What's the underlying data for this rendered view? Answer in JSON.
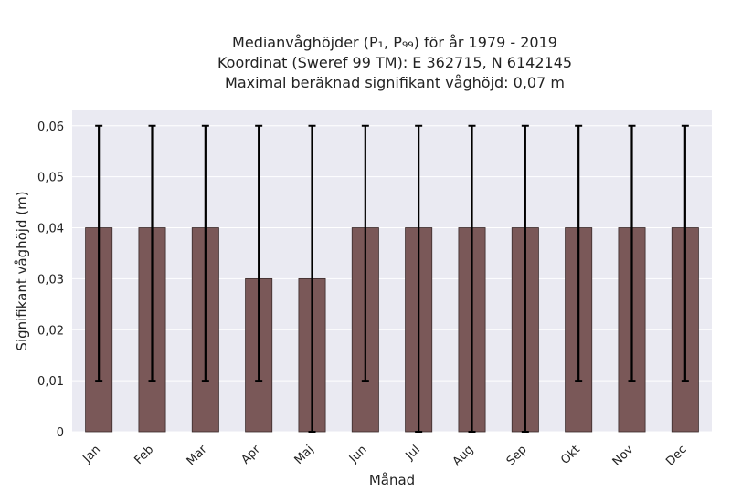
{
  "chart_data": {
    "type": "bar",
    "title_lines": [
      "Medianvåghöjder (P₁, P₉₉) för år 1979 - 2019",
      "Koordinat (Sweref 99 TM): E 362715, N 6142145",
      "Maximal beräknad signifikant våghöjd: 0,07 m"
    ],
    "xlabel": "Månad",
    "ylabel": "Signifikant våghöjd (m)",
    "categories": [
      "Jan",
      "Feb",
      "Mar",
      "Apr",
      "Maj",
      "Jun",
      "Jul",
      "Aug",
      "Sep",
      "Okt",
      "Nov",
      "Dec"
    ],
    "values": [
      0.04,
      0.04,
      0.04,
      0.03,
      0.03,
      0.04,
      0.04,
      0.04,
      0.04,
      0.04,
      0.04,
      0.04
    ],
    "error_low": [
      0.01,
      0.01,
      0.01,
      0.01,
      0.0,
      0.01,
      0.0,
      0.0,
      0.0,
      0.01,
      0.01,
      0.01
    ],
    "error_high": [
      0.06,
      0.06,
      0.06,
      0.06,
      0.06,
      0.06,
      0.06,
      0.06,
      0.06,
      0.06,
      0.06,
      0.06
    ],
    "ylim": [
      0,
      0.063
    ],
    "yticks": [
      0,
      0.01,
      0.02,
      0.03,
      0.04,
      0.05,
      0.06
    ],
    "ytick_labels": [
      "0",
      "0,01",
      "0,02",
      "0,03",
      "0,04",
      "0,05",
      "0,06"
    ],
    "grid": true,
    "colors": {
      "bar": "#7a5858",
      "bar_edge": "#3a2a2a",
      "error_bar": "#000000",
      "plot_background": "#eaeaf2",
      "grid": "#ffffff"
    }
  }
}
